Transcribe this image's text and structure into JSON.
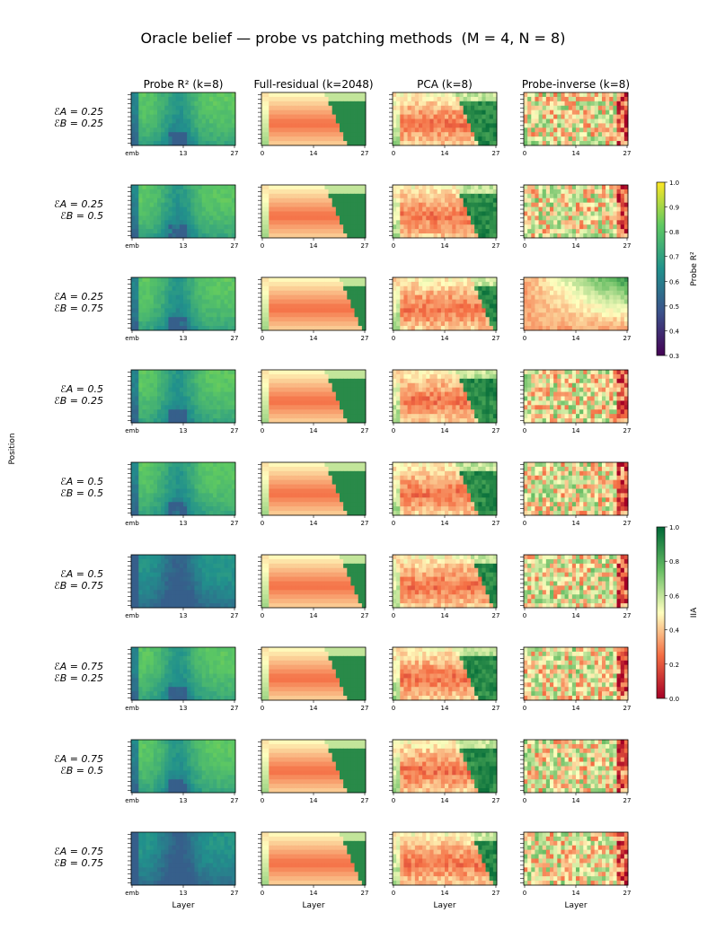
{
  "chart_data": {
    "type": "heatmap",
    "title": "Oracle belief — probe vs patching methods",
    "title_params": "(M = 4, N = 8)",
    "ylabel": "Position",
    "xlabel": "Layer",
    "columns": [
      {
        "label": "Probe R² (k=8)",
        "xticks": [
          "emb",
          "13",
          "27"
        ],
        "colormap": "viridis",
        "metric": "Probe R²"
      },
      {
        "label": "Full-residual (k=2048)",
        "xticks": [
          "0",
          "14",
          "27"
        ],
        "colormap": "RdYlGn",
        "metric": "IIA"
      },
      {
        "label": "PCA (k=8)",
        "xticks": [
          "0",
          "14",
          "27"
        ],
        "colormap": "RdYlGn",
        "metric": "IIA"
      },
      {
        "label": "Probe-inverse (k=8)",
        "xticks": [
          "0",
          "14",
          "27"
        ],
        "colormap": "RdYlGn",
        "metric": "IIA"
      }
    ],
    "rows": [
      {
        "epsA": "0.25",
        "epsB": "0.25"
      },
      {
        "epsA": "0.25",
        "epsB": "0.5"
      },
      {
        "epsA": "0.25",
        "epsB": "0.75"
      },
      {
        "epsA": "0.5",
        "epsB": "0.25"
      },
      {
        "epsA": "0.5",
        "epsB": "0.5"
      },
      {
        "epsA": "0.5",
        "epsB": "0.75"
      },
      {
        "epsA": "0.75",
        "epsB": "0.25"
      },
      {
        "epsA": "0.75",
        "epsB": "0.5"
      },
      {
        "epsA": "0.75",
        "epsB": "0.75"
      }
    ],
    "colorbars": [
      {
        "label": "Probe R²",
        "range": [
          0.3,
          1.0
        ],
        "ticks": [
          "0.3",
          "0.4",
          "0.5",
          "0.6",
          "0.7",
          "0.8",
          "0.9",
          "1.0"
        ],
        "colormap": "viridis"
      },
      {
        "label": "IIA",
        "range": [
          0.0,
          1.0
        ],
        "ticks": [
          "0.0",
          "0.2",
          "0.4",
          "0.6",
          "0.8",
          "1.0"
        ],
        "colormap": "RdYlGn"
      }
    ],
    "grid": false
  }
}
